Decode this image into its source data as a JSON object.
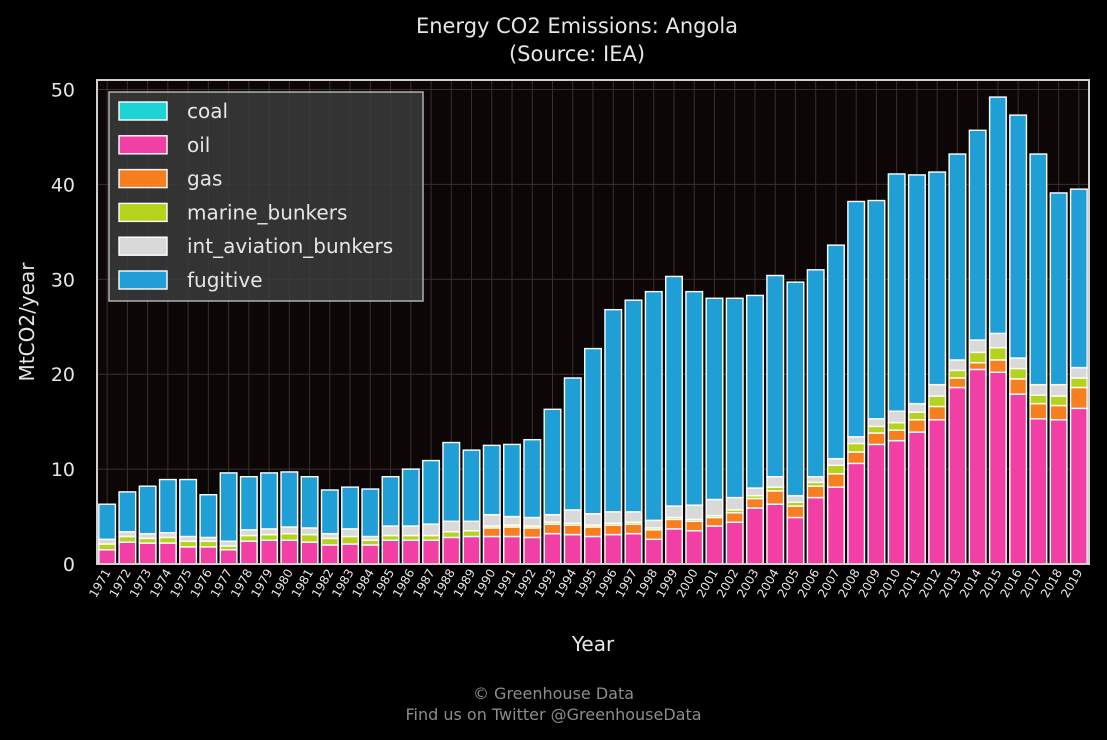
{
  "chart_data": {
    "type": "bar",
    "stacked": true,
    "title": "Energy CO2 Emissions: Angola",
    "subtitle": "(Source: IEA)",
    "xlabel": "Year",
    "ylabel": "MtCO2/year",
    "ylim": [
      0,
      51
    ],
    "yticks": [
      0,
      10,
      20,
      30,
      40,
      50
    ],
    "grid": true,
    "legend_position": "top-left",
    "categories": [
      "1971",
      "1972",
      "1973",
      "1974",
      "1975",
      "1976",
      "1977",
      "1978",
      "1979",
      "1980",
      "1981",
      "1982",
      "1983",
      "1984",
      "1985",
      "1986",
      "1987",
      "1988",
      "1989",
      "1990",
      "1991",
      "1992",
      "1993",
      "1994",
      "1995",
      "1996",
      "1997",
      "1998",
      "1999",
      "2000",
      "2001",
      "2002",
      "2003",
      "2004",
      "2005",
      "2006",
      "2007",
      "2008",
      "2009",
      "2010",
      "2011",
      "2012",
      "2013",
      "2014",
      "2015",
      "2016",
      "2017",
      "2018",
      "2019"
    ],
    "series": [
      {
        "name": "coal",
        "color": "#1ed3d3",
        "values": [
          0,
          0,
          0,
          0,
          0,
          0,
          0,
          0,
          0,
          0,
          0,
          0,
          0,
          0,
          0,
          0,
          0,
          0,
          0,
          0,
          0,
          0,
          0,
          0,
          0,
          0,
          0,
          0,
          0,
          0,
          0,
          0,
          0,
          0,
          0,
          0,
          0,
          0,
          0,
          0,
          0,
          0,
          0,
          0,
          0,
          0,
          0,
          0,
          0
        ]
      },
      {
        "name": "oil",
        "color": "#f13fa5",
        "values": [
          1.5,
          2.3,
          2.2,
          2.2,
          1.8,
          1.8,
          1.5,
          2.4,
          2.5,
          2.5,
          2.3,
          2.0,
          2.1,
          2.0,
          2.5,
          2.5,
          2.5,
          2.8,
          2.9,
          2.9,
          2.9,
          2.8,
          3.2,
          3.1,
          2.9,
          3.1,
          3.2,
          2.6,
          3.7,
          3.5,
          4.0,
          4.4,
          5.9,
          6.3,
          4.9,
          7.0,
          8.1,
          10.6,
          12.6,
          13.0,
          13.9,
          15.2,
          18.6,
          20.5,
          20.2,
          17.9,
          15.3,
          15.2,
          16.4
        ]
      },
      {
        "name": "gas",
        "color": "#f77f20",
        "values": [
          0,
          0,
          0,
          0,
          0,
          0,
          0,
          0,
          0,
          0,
          0,
          0,
          0,
          0,
          0,
          0,
          0,
          0,
          0,
          0.9,
          1.0,
          1.0,
          1.0,
          1.0,
          1.0,
          1.0,
          1.0,
          1.0,
          1.0,
          1.0,
          0.9,
          1.0,
          1.0,
          1.4,
          1.2,
          1.2,
          1.4,
          1.2,
          1.2,
          1.1,
          1.3,
          1.4,
          1.0,
          0.7,
          1.3,
          1.6,
          1.6,
          1.5,
          2.2
        ]
      },
      {
        "name": "marine_bunkers",
        "color": "#b5d31c",
        "values": [
          0.6,
          0.6,
          0.5,
          0.6,
          0.6,
          0.6,
          0.4,
          0.6,
          0.6,
          0.7,
          0.8,
          0.7,
          0.8,
          0.5,
          0.5,
          0.5,
          0.5,
          0.6,
          0.6,
          0.2,
          0.2,
          0.2,
          0.2,
          0.2,
          0.2,
          0.2,
          0.2,
          0.2,
          0.2,
          0.2,
          0.2,
          0.3,
          0.3,
          0.4,
          0.4,
          0.4,
          0.9,
          0.9,
          0.7,
          0.8,
          0.8,
          1.1,
          0.8,
          1.1,
          1.3,
          1.1,
          0.9,
          1.0,
          1.0
        ]
      },
      {
        "name": "int_aviation_bunkers",
        "color": "#d9d9d9",
        "values": [
          0.5,
          0.5,
          0.5,
          0.5,
          0.5,
          0.4,
          0.5,
          0.6,
          0.6,
          0.7,
          0.7,
          0.5,
          0.8,
          0.4,
          1.0,
          1.0,
          1.2,
          1.1,
          1.0,
          1.2,
          0.9,
          0.9,
          0.8,
          1.4,
          1.2,
          1.2,
          1.1,
          0.8,
          1.2,
          1.5,
          1.7,
          1.3,
          0.8,
          1.1,
          0.7,
          0.6,
          0.7,
          0.7,
          0.8,
          1.2,
          0.9,
          1.2,
          1.1,
          1.3,
          1.5,
          1.1,
          1.1,
          1.2,
          1.1
        ]
      },
      {
        "name": "fugitive",
        "color": "#1f9fd6",
        "values": [
          3.7,
          4.2,
          5.0,
          5.6,
          6.0,
          4.5,
          7.2,
          5.6,
          5.9,
          5.8,
          5.4,
          4.6,
          4.4,
          5.0,
          5.2,
          6.0,
          6.7,
          8.3,
          7.5,
          7.3,
          7.6,
          8.2,
          11.1,
          13.9,
          17.4,
          21.3,
          22.3,
          24.1,
          24.2,
          22.5,
          21.2,
          21.0,
          20.3,
          21.2,
          22.5,
          21.8,
          22.5,
          24.8,
          23.0,
          25.0,
          24.1,
          22.4,
          21.7,
          22.1,
          24.9,
          25.6,
          24.3,
          20.2,
          18.8
        ]
      }
    ]
  },
  "footer": {
    "line1": "© Greenhouse Data",
    "line2": "Find us on Twitter @GreenhouseData"
  }
}
